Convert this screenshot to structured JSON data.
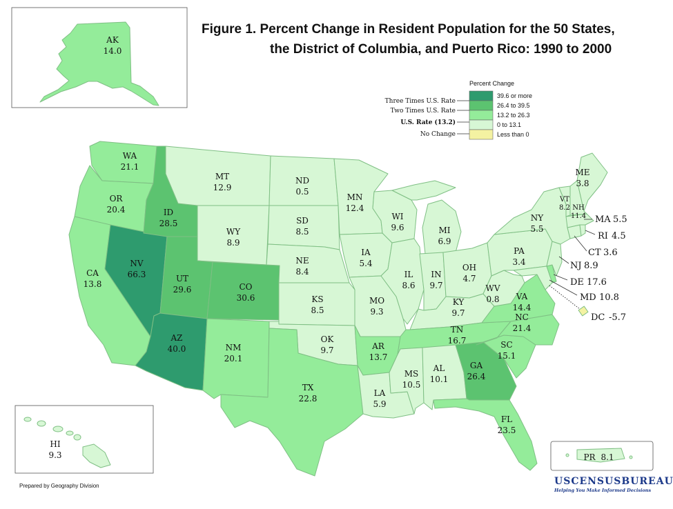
{
  "title": {
    "line1": "Figure 1.  Percent Change in Resident Population for the 50 States,",
    "line2": "the District of Columbia, and Puerto Rico: 1990 to 2000"
  },
  "colors": {
    "three_times": "#2e9b6e",
    "two_times": "#5cc370",
    "us_rate": "#94ec9a",
    "no_change": "#d7f7d5",
    "less_than_zero": "#f4f2a2",
    "border": "#7fbf84"
  },
  "legend": {
    "title": "Percent Change",
    "left_labels": [
      "Three Times U.S. Rate",
      "Two Times U.S. Rate",
      "U.S. Rate (13.2)",
      "No Change"
    ],
    "bins": [
      {
        "label": "39.6 or more",
        "class": "three_times"
      },
      {
        "label": "26.4 to 39.5",
        "class": "two_times"
      },
      {
        "label": "13.2 to 26.3",
        "class": "us_rate"
      },
      {
        "label": "0 to 13.1",
        "class": "no_change"
      },
      {
        "label": "Less than 0",
        "class": "less_than_zero"
      }
    ]
  },
  "states": {
    "WA": "21.1",
    "OR": "20.4",
    "CA": "13.8",
    "NV": "66.3",
    "ID": "28.5",
    "MT": "12.9",
    "WY": "8.9",
    "UT": "29.6",
    "AZ": "40.0",
    "CO": "30.6",
    "NM": "20.1",
    "ND": "0.5",
    "SD": "8.5",
    "NE": "8.4",
    "KS": "8.5",
    "OK": "9.7",
    "TX": "22.8",
    "MN": "12.4",
    "IA": "5.4",
    "MO": "9.3",
    "AR": "13.7",
    "LA": "5.9",
    "WI": "9.6",
    "IL": "8.6",
    "MS": "10.5",
    "MI": "6.9",
    "IN": "9.7",
    "KY": "9.7",
    "TN": "16.7",
    "AL": "10.1",
    "OH": "4.7",
    "WV": "0.8",
    "GA": "26.4",
    "FL": "23.5",
    "SC": "15.1",
    "NC": "21.4",
    "VA": "14.4",
    "PA": "3.4",
    "NY": "5.5",
    "VT": "8.2",
    "NH": "11.4",
    "ME": "3.8",
    "MA": "5.5",
    "RI": "4.5",
    "CT": "3.6",
    "NJ": "8.9",
    "DE": "17.6",
    "MD": "10.8",
    "DC": "-5.7",
    "AK": "14.0",
    "HI": "9.3",
    "PR": "8.1"
  },
  "footer": {
    "prepared_by": "Prepared by Geography Division",
    "agency": "USCENSUSBUREAU",
    "tagline": "Helping You Make Informed Decisions"
  }
}
